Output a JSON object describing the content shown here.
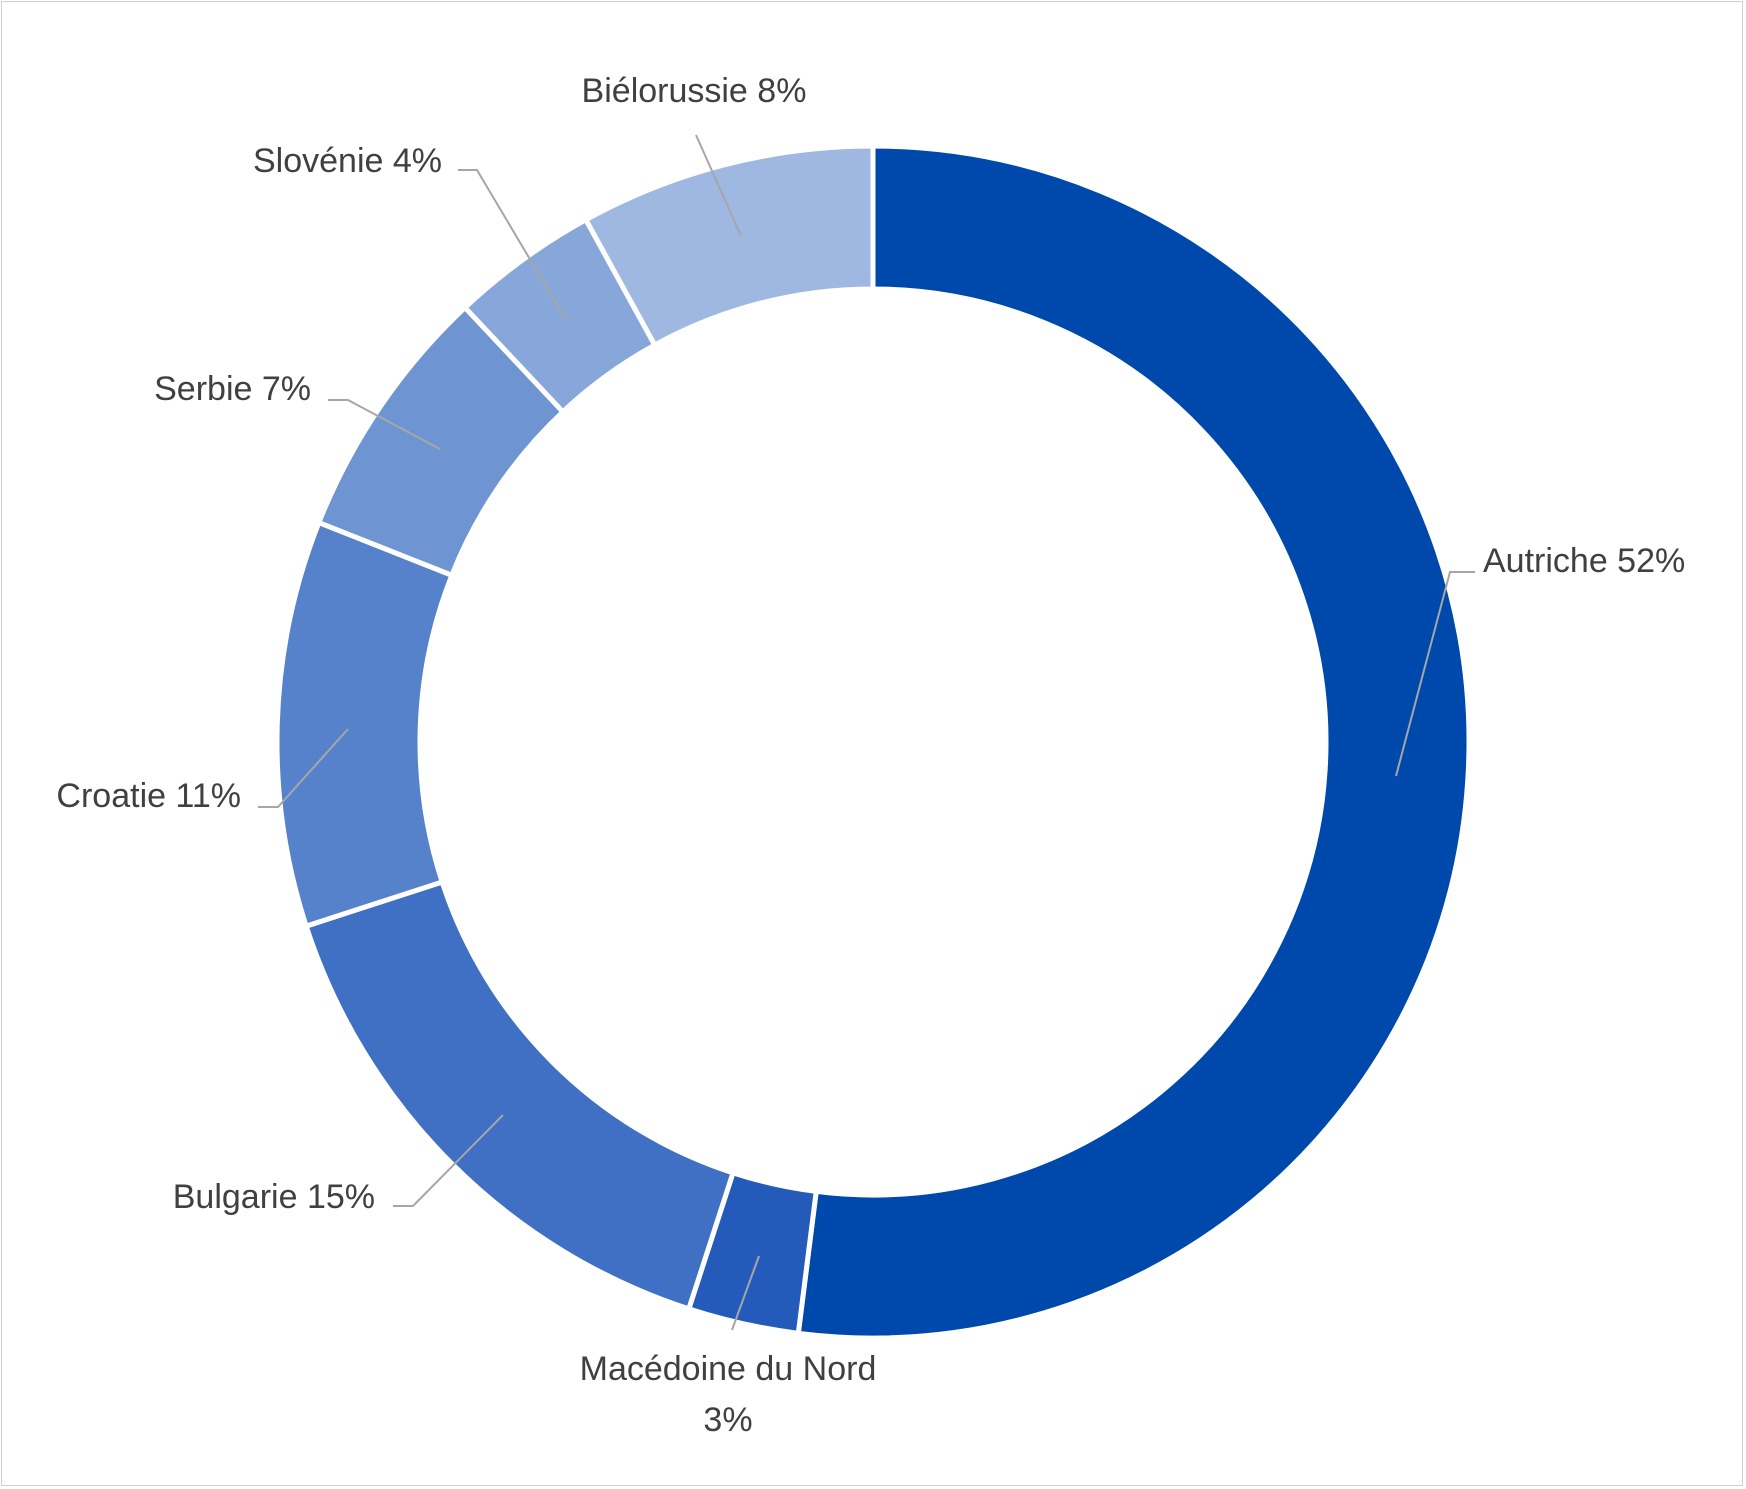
{
  "chart_data": {
    "type": "pie",
    "donut": true,
    "slices": [
      {
        "label": "Autriche",
        "value": 52,
        "value_label": "52%",
        "color": "#0049ac"
      },
      {
        "label": "Macédoine du Nord",
        "value": 3,
        "value_label": "3%",
        "color": "#245bba"
      },
      {
        "label": "Bulgarie",
        "value": 15,
        "value_label": "15%",
        "color": "#3f70c3"
      },
      {
        "label": "Croatie",
        "value": 11,
        "value_label": "11%",
        "color": "#5682cb"
      },
      {
        "label": "Serbie",
        "value": 7,
        "value_label": "7%",
        "color": "#6e95d2"
      },
      {
        "label": "Slovénie",
        "value": 4,
        "value_label": "4%",
        "color": "#87a7da"
      },
      {
        "label": "Biélorussie",
        "value": 8,
        "value_label": "8%",
        "color": "#9eb8e1"
      }
    ],
    "legend": "none",
    "data_labels": "outside with leader lines"
  }
}
